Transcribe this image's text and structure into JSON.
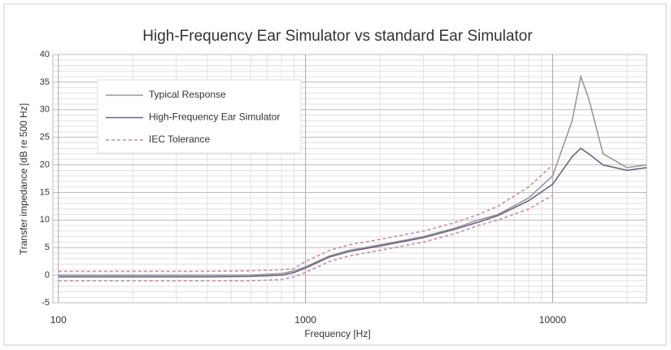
{
  "chart_data": {
    "type": "line",
    "title": "High-Frequency Ear Simulator vs standard Ear Simulator",
    "x_label": "Frequency [Hz]",
    "y_label": "Transfer impedance [dB re 500 Hz]",
    "x_log": true,
    "grid": true,
    "minor_grid": true,
    "xlim": [
      95,
      24000
    ],
    "ylim": [
      -5,
      40
    ],
    "xticks": [
      100,
      1000,
      10000
    ],
    "yticks": [
      -5,
      0,
      5,
      10,
      15,
      20,
      25,
      30,
      35,
      40
    ],
    "x": [
      100,
      200,
      400,
      600,
      800,
      900,
      1000,
      1250,
      1500,
      2000,
      3000,
      4000,
      5000,
      6000,
      8000,
      10000,
      12000,
      13000,
      14000,
      16000,
      20000,
      24000
    ],
    "series": [
      {
        "name": "Typical Response",
        "color": "#9a9a9a",
        "dash": false,
        "values": [
          0,
          0,
          0,
          0,
          0.3,
          0.8,
          1.5,
          3.5,
          4.5,
          5.5,
          7,
          8.5,
          10,
          11,
          14,
          18,
          28,
          36,
          32,
          22,
          19.5,
          20
        ]
      },
      {
        "name": "High-Frequency Ear Simulator",
        "color": "#6b6585",
        "dash": false,
        "values": [
          -0.3,
          -0.3,
          -0.3,
          -0.2,
          0,
          0.5,
          1.3,
          3.3,
          4.3,
          5.3,
          6.8,
          8.3,
          9.6,
          10.8,
          13.5,
          16.5,
          21.5,
          23,
          22,
          20,
          19,
          19.5
        ]
      },
      {
        "name": "IEC Tolerance",
        "color": "#c98fa0",
        "dash": true,
        "values": [
          -1,
          -1,
          -1,
          -1,
          -0.8,
          -0.3,
          0.5,
          2.5,
          3.5,
          4.5,
          6,
          7.5,
          9,
          10,
          12,
          14.5,
          null,
          null,
          null,
          null,
          null,
          null
        ],
        "values_upper": [
          0.7,
          0.7,
          0.7,
          0.8,
          1,
          1.2,
          2.5,
          4.5,
          5.5,
          6.5,
          8,
          9.5,
          11,
          12.5,
          16,
          20,
          null,
          null,
          null,
          null,
          null,
          null
        ]
      }
    ]
  }
}
